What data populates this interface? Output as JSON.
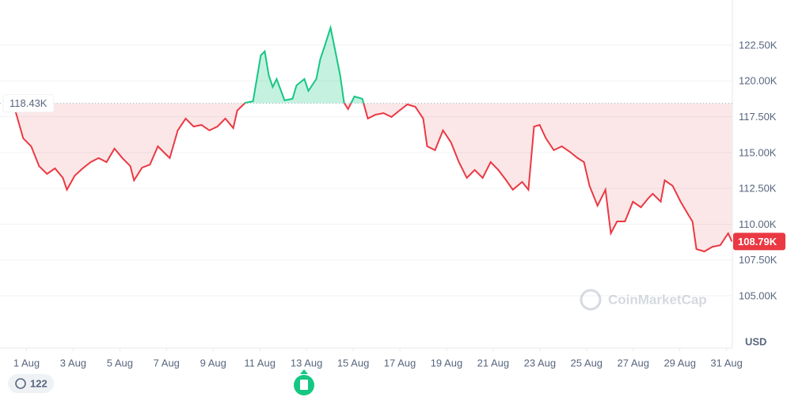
{
  "chart_data": {
    "type": "line",
    "x": [
      0.02,
      0.52,
      0.86,
      1.2,
      1.54,
      1.88,
      2.22,
      2.56,
      2.73,
      3.07,
      3.41,
      3.75,
      4.09,
      4.43,
      4.77,
      5.11,
      5.45,
      5.61,
      5.95,
      6.29,
      6.63,
      6.97,
      7.14,
      7.48,
      7.82,
      8.16,
      8.5,
      8.84,
      9.18,
      9.52,
      9.86,
      10.03,
      10.37,
      10.71,
      11.04,
      11.21,
      11.38,
      11.55,
      11.72,
      12.06,
      12.4,
      12.57,
      12.91,
      13.08,
      13.42,
      13.59,
      13.76,
      14.03,
      14.27,
      14.44,
      14.61,
      14.78,
      15.05,
      15.39,
      15.63,
      15.96,
      16.3,
      16.64,
      16.98,
      17.32,
      17.66,
      18.0,
      18.17,
      18.51,
      18.85,
      19.19,
      19.53,
      19.87,
      20.21,
      20.55,
      20.89,
      21.22,
      21.56,
      21.84,
      22.24,
      22.51,
      22.75,
      22.99,
      23.26,
      23.6,
      23.94,
      24.28,
      24.62,
      24.89,
      25.13,
      25.47,
      25.81,
      26.04,
      26.31,
      26.65,
      26.99,
      27.33,
      27.67,
      27.84,
      28.18,
      28.35,
      28.69,
      29.03,
      29.37,
      29.54,
      29.71,
      30.05,
      30.39,
      30.73,
      31.07,
      31.23
    ],
    "values": [
      118430,
      117920,
      115990,
      115430,
      114050,
      113500,
      113890,
      113230,
      112400,
      113390,
      113890,
      114330,
      114610,
      114330,
      115270,
      114610,
      114050,
      113060,
      113940,
      114160,
      115430,
      114880,
      114610,
      116540,
      117370,
      116810,
      116920,
      116540,
      116810,
      117370,
      116700,
      117920,
      118470,
      118580,
      121780,
      122060,
      120400,
      119570,
      120130,
      118640,
      118750,
      119690,
      120130,
      119300,
      120130,
      121510,
      122330,
      123710,
      121780,
      120400,
      118470,
      118030,
      118910,
      118750,
      117370,
      117640,
      117750,
      117480,
      117920,
      118360,
      118190,
      117370,
      115430,
      115160,
      116540,
      115710,
      114330,
      113230,
      113780,
      113230,
      114330,
      113780,
      113060,
      112400,
      112950,
      112400,
      116810,
      116920,
      115990,
      115160,
      115430,
      115050,
      114610,
      114330,
      112670,
      111290,
      112400,
      109360,
      110190,
      110190,
      111570,
      111180,
      111850,
      112120,
      111570,
      113060,
      112670,
      111570,
      110630,
      110190,
      108260,
      108090,
      108420,
      108530,
      109360,
      108790
    ],
    "xlim": [
      0,
      31.25
    ],
    "xticks": [
      {
        "value": 1,
        "label": "1 Aug"
      },
      {
        "value": 3,
        "label": "3 Aug"
      },
      {
        "value": 5,
        "label": "5 Aug"
      },
      {
        "value": 7,
        "label": "7 Aug"
      },
      {
        "value": 9,
        "label": "9 Aug"
      },
      {
        "value": 11,
        "label": "11 Aug"
      },
      {
        "value": 13,
        "label": "13 Aug"
      },
      {
        "value": 15,
        "label": "15 Aug"
      },
      {
        "value": 17,
        "label": "17 Aug"
      },
      {
        "value": 19,
        "label": "19 Aug"
      },
      {
        "value": 21,
        "label": "21 Aug"
      },
      {
        "value": 23,
        "label": "23 Aug"
      },
      {
        "value": 25,
        "label": "25 Aug"
      },
      {
        "value": 27,
        "label": "27 Aug"
      },
      {
        "value": 29,
        "label": "29 Aug"
      },
      {
        "value": 31,
        "label": "31 Aug"
      }
    ],
    "ylim": [
      101360,
      125090
    ],
    "yticks": [
      {
        "value": 105000,
        "label": "105.00K"
      },
      {
        "value": 107500,
        "label": "107.50K"
      },
      {
        "value": 110000,
        "label": "110.00K"
      },
      {
        "value": 112500,
        "label": "112.50K"
      },
      {
        "value": 115000,
        "label": "115.00K"
      },
      {
        "value": 117500,
        "label": "117.50K"
      },
      {
        "value": 120000,
        "label": "120.00K"
      },
      {
        "value": 122500,
        "label": "122.50K"
      }
    ],
    "baseline": {
      "value": 118430,
      "label": "118.43K"
    },
    "last_price": {
      "value": 108790,
      "label": "108.79K"
    },
    "currency": "USD",
    "watermark": "CoinMarketCap",
    "badge": "122",
    "color_up": "#16c784",
    "color_down": "#ea3943",
    "grid": true
  }
}
